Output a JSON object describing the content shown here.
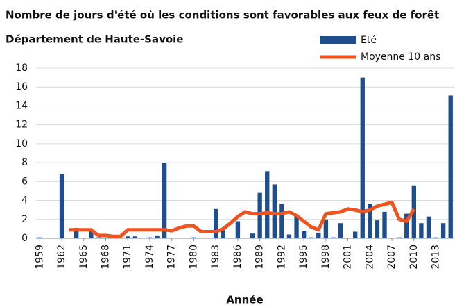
{
  "chart_data": {
    "type": "bar",
    "title": "Nombre de jours d'été où les conditions sont favorables aux feux de forêt",
    "subtitle": "Département de Haute-Savoie",
    "x_label": "Année",
    "x": [
      1959,
      1960,
      1961,
      1962,
      1963,
      1964,
      1965,
      1966,
      1967,
      1968,
      1969,
      1970,
      1971,
      1972,
      1973,
      1974,
      1975,
      1976,
      1977,
      1978,
      1979,
      1980,
      1981,
      1982,
      1983,
      1984,
      1985,
      1986,
      1987,
      1988,
      1989,
      1990,
      1991,
      1992,
      1993,
      1994,
      1995,
      1996,
      1997,
      1998,
      1999,
      2000,
      2001,
      2002,
      2003,
      2004,
      2005,
      2006,
      2007,
      2008,
      2009,
      2010,
      2011,
      2012,
      2013,
      2014,
      2015
    ],
    "series": [
      {
        "name": "Eté",
        "type": "bar",
        "color": "#1f4e8c",
        "values": [
          0.1,
          0,
          0,
          6.8,
          0,
          1.1,
          0,
          1.0,
          0.1,
          0,
          0,
          0,
          0.2,
          0.2,
          0,
          0.1,
          0.3,
          8.0,
          0,
          0,
          0,
          0.1,
          0,
          0,
          3.1,
          1.0,
          0,
          1.8,
          0,
          0.5,
          4.8,
          7.1,
          5.7,
          3.6,
          0.4,
          2.4,
          0.8,
          0.1,
          0.6,
          2.0,
          0.1,
          1.6,
          0,
          0.7,
          17.0,
          3.6,
          1.9,
          2.8,
          0,
          0.1,
          2.6,
          5.6,
          1.6,
          2.3,
          0.1,
          1.6,
          15.1
        ]
      },
      {
        "name": "Moyenne 10 ans",
        "type": "line",
        "color": "#f0541e",
        "values": [
          null,
          null,
          null,
          null,
          0.9,
          0.9,
          0.9,
          0.9,
          0.3,
          0.3,
          0.2,
          0.2,
          0.9,
          0.9,
          0.9,
          0.9,
          0.9,
          0.9,
          0.8,
          1.1,
          1.3,
          1.3,
          0.7,
          0.7,
          0.7,
          1.0,
          1.6,
          2.3,
          2.8,
          2.6,
          2.6,
          2.7,
          2.6,
          2.6,
          2.8,
          2.4,
          1.8,
          1.2,
          0.9,
          2.6,
          2.7,
          2.8,
          3.1,
          3.0,
          2.8,
          3.0,
          3.4,
          3.6,
          3.8,
          2.0,
          1.8,
          3.1,
          null,
          null,
          null,
          null,
          null
        ]
      }
    ],
    "xlim": [
      1958.5,
      2015.5
    ],
    "xticks": [
      1959,
      1962,
      1965,
      1968,
      1971,
      1974,
      1977,
      1980,
      1983,
      1986,
      1989,
      1992,
      1995,
      1998,
      2001,
      2004,
      2007,
      2010,
      2013
    ],
    "ylim": [
      0,
      18
    ],
    "yticks": [
      0,
      2,
      4,
      6,
      8,
      10,
      12,
      14,
      16,
      18
    ],
    "grid": true
  }
}
